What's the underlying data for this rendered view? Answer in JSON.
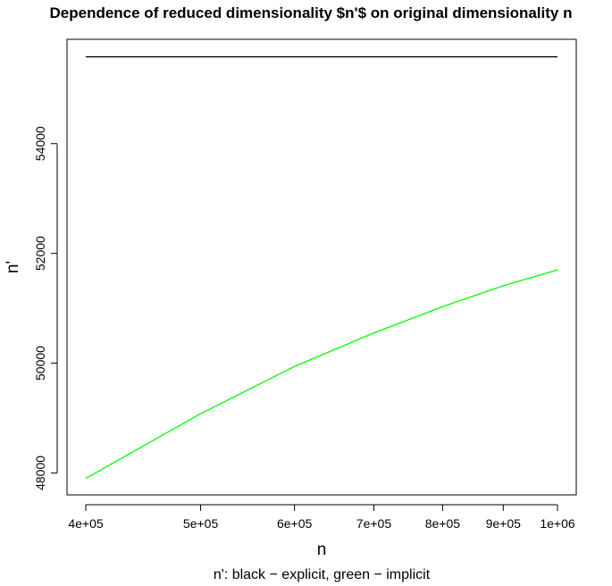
{
  "chart_data": {
    "type": "line",
    "title": "Dependence of reduced dimensionality $n'$ on original dimensionality n",
    "subtitle": "n': black − explicit, green − implicit",
    "xlabel": "n",
    "ylabel": "n'",
    "x_scale": "log",
    "xlim": [
      400000,
      1000000
    ],
    "ylim": [
      47600,
      55900
    ],
    "x_ticks": [
      400000,
      500000,
      600000,
      700000,
      800000,
      900000,
      1000000
    ],
    "x_tick_labels": [
      "4e+05",
      "5e+05",
      "6e+05",
      "7e+05",
      "8e+05",
      "9e+05",
      "1e+06"
    ],
    "y_ticks": [
      48000,
      50000,
      52000,
      54000
    ],
    "y_tick_labels": [
      "48000",
      "50000",
      "52000",
      "54000"
    ],
    "grid": false,
    "series": [
      {
        "color": "#000000",
        "x": [
          400000,
          500000,
          600000,
          700000,
          800000,
          900000,
          1000000
        ],
        "y": [
          55580,
          55580,
          55580,
          55580,
          55580,
          55580,
          55580
        ]
      },
      {
        "color": "#00ff00",
        "x": [
          400000,
          500000,
          600000,
          700000,
          800000,
          900000,
          1000000
        ],
        "y": [
          47900,
          49080,
          49940,
          50550,
          51030,
          51410,
          51700
        ]
      }
    ]
  }
}
